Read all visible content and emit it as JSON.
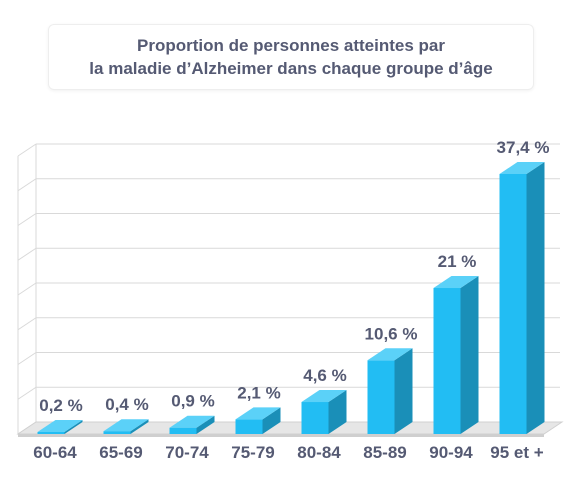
{
  "chart_data": {
    "type": "bar",
    "title_lines": [
      "Proportion de personnes atteintes par",
      "la maladie d’Alzheimer dans chaque groupe d’âge"
    ],
    "categories": [
      "60-64",
      "65-69",
      "70-74",
      "75-79",
      "80-84",
      "85-89",
      "90-94",
      "95 et +"
    ],
    "values": [
      0.2,
      0.4,
      0.9,
      2.1,
      4.6,
      10.6,
      21,
      37.4
    ],
    "value_labels": [
      "0,2 %",
      "0,4 %",
      "0,9 %",
      "2,1 %",
      "4,6 %",
      "10,6 %",
      "21 %",
      "37,4 %"
    ],
    "ylim": [
      0,
      37.4
    ],
    "grid": true,
    "legend": "none",
    "colors": {
      "bar_front": "#22bdf3",
      "bar_side": "#1a8fb8",
      "bar_top": "#5bd1f8",
      "text": "#555a73",
      "grid": "#d9d9d9"
    }
  }
}
